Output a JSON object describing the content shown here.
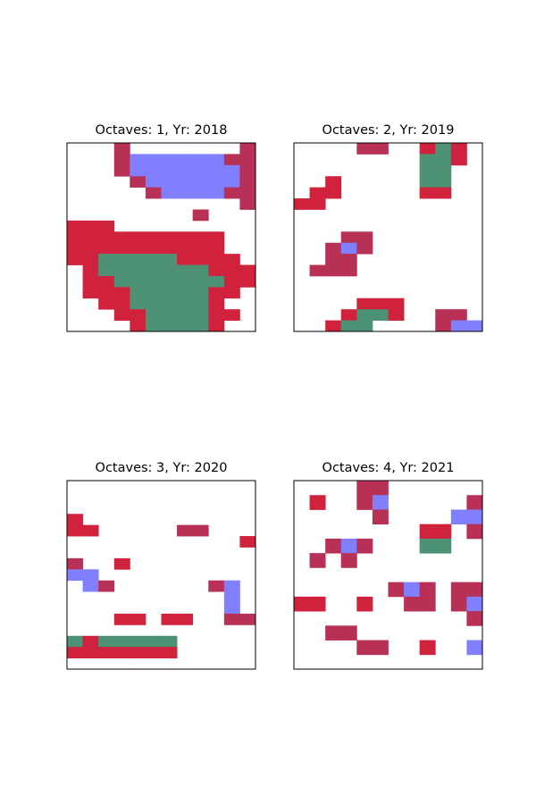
{
  "chart_data": [
    {
      "type": "heatmap",
      "title": "Octaves: 1, Yr: 2018",
      "grid": false,
      "palette": {
        "R": "#d0223c",
        "M": "#b83055",
        "B": "#8080ff",
        "G": "#4e9276"
      },
      "rows": [
        "...M.......M",
        "...MBBBBBBMM",
        "...MBBBBBBBM",
        "....MBBBBBBM",
        ".....MBBBBMM",
        "...........M",
        "........M...",
        "RRR.........",
        "RRRRRRRRRR..",
        "RRRRRRRRRR..",
        "RRGGGGGRRRR.",
        ".RGGGGGGGRRR",
        ".RRGGGGGGGRR",
        ".RRRGGGGGRR.",
        "..RRGGGGGR..",
        "...RRGGGGRR.",
        "....RGGGGR.."
      ]
    },
    {
      "type": "heatmap",
      "title": "Octaves: 2, Yr: 2019",
      "grid": false,
      "palette": {
        "R": "#d0223c",
        "M": "#b83055",
        "B": "#8080ff",
        "G": "#4e9276"
      },
      "rows": [
        "....MM..RGR.",
        "........GGR.",
        "........GG..",
        "..R.....GG..",
        ".RR.....RR..",
        "RR..........",
        "............",
        "............",
        "...MM.......",
        "..MBM.......",
        "..MM........",
        ".MMM........",
        "............",
        "............",
        "....RRR.....",
        "...RGGR..MM.",
        "..RGG....MBB"
      ]
    },
    {
      "type": "heatmap",
      "title": "Octaves: 3, Yr: 2020",
      "grid": false,
      "palette": {
        "R": "#d0223c",
        "M": "#b83055",
        "B": "#8080ff",
        "G": "#4e9276"
      },
      "rows": [
        "............",
        "............",
        "............",
        "R...........",
        "RR.....MM...",
        "...........R",
        "............",
        "M..R........",
        "BB..........",
        ".BM......MB.",
        "..........B.",
        "..........B.",
        "...RR.RR..MM",
        "............",
        "GRGGGGG.....",
        "RRRRRRR.....",
        "............"
      ]
    },
    {
      "type": "heatmap",
      "title": "Octaves: 4, Yr: 2021",
      "grid": false,
      "palette": {
        "R": "#d0223c",
        "M": "#b83055",
        "B": "#8080ff",
        "G": "#4e9276"
      },
      "rows": [
        "....MM......",
        ".R..MB.....M",
        ".....M....BB",
        "........RR.M",
        "..MBM...GG..",
        ".M.M........",
        "............",
        "......MBM.MM",
        "RR..R..MM.MB",
        "...........M",
        "..MM........",
        "....MM..R..B",
        "............"
      ]
    }
  ]
}
